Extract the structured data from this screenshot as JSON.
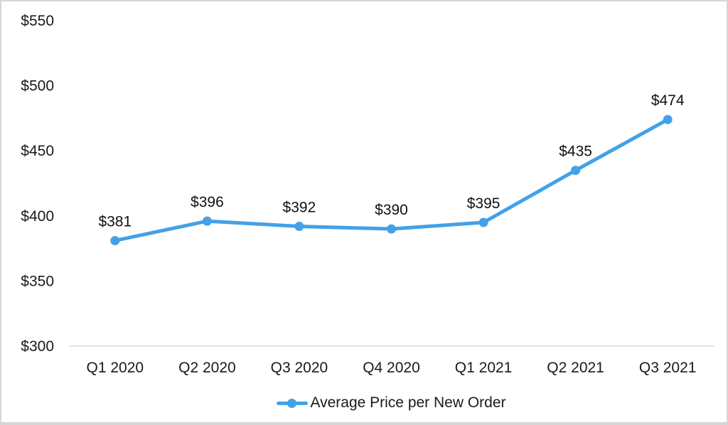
{
  "colors": {
    "series": "#42A1E8",
    "axis_line": "#D9D9D9",
    "text": "#1A1A1A",
    "frame": "#D6D6D6",
    "background": "#FFFFFF"
  },
  "chart_data": {
    "type": "line",
    "title": "",
    "xlabel": "",
    "ylabel": "",
    "categories": [
      "Q1 2020",
      "Q2 2020",
      "Q3 2020",
      "Q4 2020",
      "Q1 2021",
      "Q2 2021",
      "Q3 2021"
    ],
    "series": [
      {
        "name": "Average Price per New Order",
        "values": [
          381,
          396,
          392,
          390,
          395,
          435,
          474
        ],
        "point_labels": [
          "$381",
          "$396",
          "$392",
          "$390",
          "$395",
          "$435",
          "$474"
        ]
      }
    ],
    "ylim": [
      300,
      550
    ],
    "y_ticks": [
      {
        "value": 300,
        "label": "$300"
      },
      {
        "value": 350,
        "label": "$350"
      },
      {
        "value": 400,
        "label": "$400"
      },
      {
        "value": 450,
        "label": "$450"
      },
      {
        "value": 500,
        "label": "$500"
      },
      {
        "value": 550,
        "label": "$550"
      }
    ],
    "grid": false,
    "legend": {
      "label": "Average Price per New Order",
      "position": "bottom"
    }
  }
}
